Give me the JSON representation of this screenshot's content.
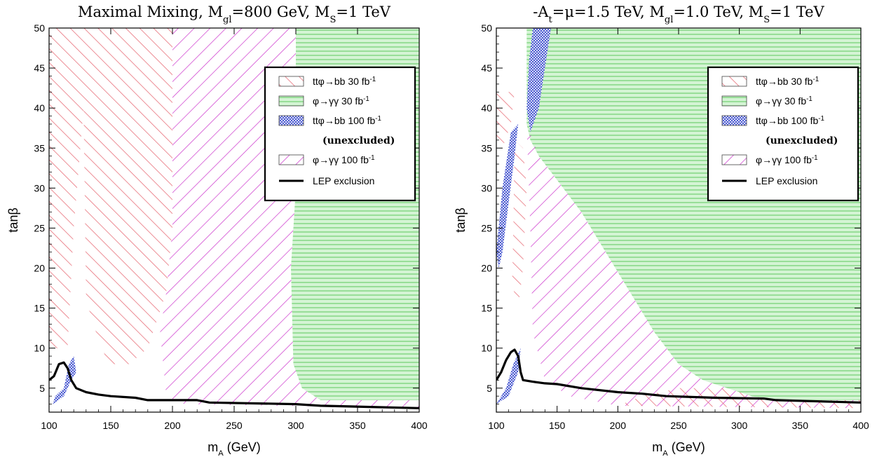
{
  "chart_data": [
    {
      "type": "area",
      "title": "Maximal Mixing, M",
      "title_sub1": "gl",
      "title_mid": "=800 GeV, M",
      "title_sub2": "S",
      "title_end": "=1 TeV",
      "xlabel": "m",
      "xlabel_sub": "A",
      "xlabel_unit": " (GeV)",
      "ylabel": "tanβ",
      "xlim": [
        100,
        400
      ],
      "ylim": [
        2,
        50
      ],
      "xticks": [
        "100",
        "150",
        "200",
        "250",
        "300",
        "350",
        "400"
      ],
      "yticks": [
        "5",
        "10",
        "15",
        "20",
        "25",
        "30",
        "35",
        "40",
        "45",
        "50"
      ],
      "grid": false,
      "legend_position": "top-right",
      "regions": [
        {
          "name": "tt_bb_30",
          "style": "red-hatch",
          "points": [
            [
              100,
              50
            ],
            [
              200,
              50
            ],
            [
              200,
              25
            ],
            [
              195,
              17
            ],
            [
              180,
              10
            ],
            [
              165,
              8
            ],
            [
              148,
              8
            ],
            [
              138,
              12
            ],
            [
              130,
              16
            ],
            [
              128,
              40
            ],
            [
              120,
              25
            ],
            [
              115,
              10
            ],
            [
              100,
              10
            ]
          ]
        },
        {
          "name": "gg_30",
          "style": "green-lines",
          "points": [
            [
              300,
              50
            ],
            [
              400,
              50
            ],
            [
              400,
              3.5
            ],
            [
              320,
              3.5
            ],
            [
              305,
              5
            ],
            [
              298,
              8
            ],
            [
              296,
              20
            ],
            [
              300,
              30
            ]
          ]
        },
        {
          "name": "tt_bb_100",
          "style": "blue-hatch",
          "points": [
            [
              103,
              3
            ],
            [
              112,
              4
            ],
            [
              118,
              6
            ],
            [
              122,
              7
            ],
            [
              120,
              9
            ],
            [
              116,
              8
            ],
            [
              112,
              5
            ],
            [
              105,
              4
            ]
          ]
        },
        {
          "name": "gg_100",
          "style": "magenta-hatch",
          "points": [
            [
              200,
              50
            ],
            [
              300,
              50
            ],
            [
              300,
              30
            ],
            [
              296,
              20
            ],
            [
              298,
              8
            ],
            [
              305,
              5
            ],
            [
              320,
              3.5
            ],
            [
              400,
              3.5
            ],
            [
              400,
              2.5
            ],
            [
              210,
              3
            ],
            [
              195,
              4
            ],
            [
              190,
              12
            ],
            [
              195,
              17
            ],
            [
              200,
              25
            ]
          ]
        }
      ],
      "lep_exclusion": [
        [
          100,
          6
        ],
        [
          104,
          6.5
        ],
        [
          108,
          8
        ],
        [
          112,
          8.2
        ],
        [
          115,
          7.5
        ],
        [
          118,
          6
        ],
        [
          122,
          5
        ],
        [
          130,
          4.5
        ],
        [
          140,
          4.2
        ],
        [
          150,
          4
        ],
        [
          170,
          3.8
        ],
        [
          180,
          3.5
        ],
        [
          220,
          3.5
        ],
        [
          230,
          3.2
        ],
        [
          300,
          3
        ],
        [
          320,
          2.8
        ],
        [
          400,
          2.5
        ]
      ]
    },
    {
      "type": "area",
      "title": "-A",
      "title_sub1": "t",
      "title_mid": "=μ=1.5 TeV, M",
      "title_sub2": "gl",
      "title_mid2": "=1.0 TeV, M",
      "title_sub3": "S",
      "title_end": "=1 TeV",
      "xlabel": "m",
      "xlabel_sub": "A",
      "xlabel_unit": " (GeV)",
      "ylabel": "tanβ",
      "xlim": [
        100,
        400
      ],
      "ylim": [
        2,
        50
      ],
      "xticks": [
        "100",
        "150",
        "200",
        "250",
        "300",
        "350",
        "400"
      ],
      "yticks": [
        "5",
        "10",
        "15",
        "20",
        "25",
        "30",
        "35",
        "40",
        "45",
        "50"
      ],
      "grid": false,
      "legend_position": "top-right",
      "regions": [
        {
          "name": "gg_30",
          "style": "green-lines",
          "points": [
            [
              125,
              50
            ],
            [
              400,
              50
            ],
            [
              400,
              3.5
            ],
            [
              330,
              3.5
            ],
            [
              310,
              4
            ],
            [
              290,
              5
            ],
            [
              270,
              6
            ],
            [
              250,
              8
            ],
            [
              230,
              12
            ],
            [
              210,
              17
            ],
            [
              190,
              22
            ],
            [
              170,
              27
            ],
            [
              150,
              31
            ],
            [
              135,
              34
            ],
            [
              128,
              36
            ],
            [
              125,
              38
            ]
          ]
        },
        {
          "name": "tt_bb_100",
          "style": "blue-hatch",
          "points": [
            [
              130,
              50
            ],
            [
              145,
              50
            ],
            [
              140,
              45
            ],
            [
              135,
              40
            ],
            [
              128,
              37
            ],
            [
              125,
              40
            ],
            [
              127,
              46
            ]
          ]
        },
        {
          "name": "tt_bb_100_b",
          "style": "blue-hatch",
          "points": [
            [
              100,
              22
            ],
            [
              105,
              30
            ],
            [
              112,
              37
            ],
            [
              118,
              38
            ],
            [
              115,
              34
            ],
            [
              110,
              28
            ],
            [
              105,
              22
            ],
            [
              102,
              20
            ]
          ]
        },
        {
          "name": "tt_bb_100_c",
          "style": "blue-hatch",
          "points": [
            [
              100,
              3
            ],
            [
              110,
              4
            ],
            [
              118,
              7
            ],
            [
              120,
              10
            ],
            [
              114,
              8
            ],
            [
              108,
              5
            ]
          ]
        },
        {
          "name": "gg_100",
          "style": "magenta-hatch",
          "points": [
            [
              125,
              38
            ],
            [
              135,
              34
            ],
            [
              150,
              31
            ],
            [
              170,
              27
            ],
            [
              190,
              22
            ],
            [
              210,
              17
            ],
            [
              230,
              12
            ],
            [
              250,
              8
            ],
            [
              270,
              6
            ],
            [
              290,
              5
            ],
            [
              310,
              4
            ],
            [
              330,
              3.5
            ],
            [
              400,
              3.5
            ],
            [
              400,
              2.5
            ],
            [
              200,
              2.8
            ],
            [
              160,
              4
            ],
            [
              140,
              6
            ],
            [
              130,
              12
            ],
            [
              128,
              25
            ]
          ]
        },
        {
          "name": "tt_bb_30",
          "style": "red-hatch",
          "points": [
            [
              100,
              42
            ],
            [
              115,
              42
            ],
            [
              112,
              38
            ],
            [
              105,
              35
            ],
            [
              100,
              36
            ]
          ]
        },
        {
          "name": "tt_bb_30_b",
          "style": "red-hatch",
          "points": [
            [
              115,
              36
            ],
            [
              122,
              35
            ],
            [
              125,
              30
            ],
            [
              122,
              20
            ],
            [
              118,
              15
            ],
            [
              113,
              18
            ],
            [
              114,
              25
            ]
          ]
        },
        {
          "name": "tt_bb_30_c",
          "style": "red-hatch",
          "points": [
            [
              200,
              2.8
            ],
            [
              400,
              2.5
            ],
            [
              400,
              3.5
            ],
            [
              330,
              3.5
            ],
            [
              310,
              4
            ],
            [
              290,
              5
            ],
            [
              250,
              5
            ],
            [
              220,
              4
            ]
          ]
        }
      ],
      "lep_exclusion": [
        [
          100,
          6
        ],
        [
          104,
          7
        ],
        [
          108,
          8.5
        ],
        [
          112,
          9.5
        ],
        [
          115,
          9.8
        ],
        [
          118,
          9
        ],
        [
          120,
          7
        ],
        [
          122,
          6
        ],
        [
          130,
          5.8
        ],
        [
          140,
          5.6
        ],
        [
          150,
          5.5
        ],
        [
          170,
          5
        ],
        [
          200,
          4.5
        ],
        [
          220,
          4.3
        ],
        [
          240,
          4
        ],
        [
          280,
          3.8
        ],
        [
          320,
          3.7
        ],
        [
          330,
          3.5
        ],
        [
          400,
          3.2
        ]
      ]
    }
  ],
  "legend": {
    "items": [
      {
        "style": "red-hatch",
        "text": "ttφ→bb  30 fb",
        "sup": "-1"
      },
      {
        "style": "green-lines",
        "text": "φ→γγ 30 fb",
        "sup": "-1"
      },
      {
        "style": "blue-hatch",
        "text": "ttφ→bb 100 fb",
        "sup": "-1"
      },
      {
        "style": "none",
        "text": "(unexcluded)",
        "sup": ""
      },
      {
        "style": "magenta-hatch",
        "text": "φ→γγ 100 fb",
        "sup": "-1"
      },
      {
        "style": "line",
        "text": "LEP exclusion",
        "sup": ""
      }
    ]
  },
  "colors": {
    "red": "#e8707a",
    "green": "#7ed47e",
    "green_bg": "#d4f4d4",
    "blue": "#3344cc",
    "magenta": "#cc33cc",
    "lep": "#000000"
  }
}
